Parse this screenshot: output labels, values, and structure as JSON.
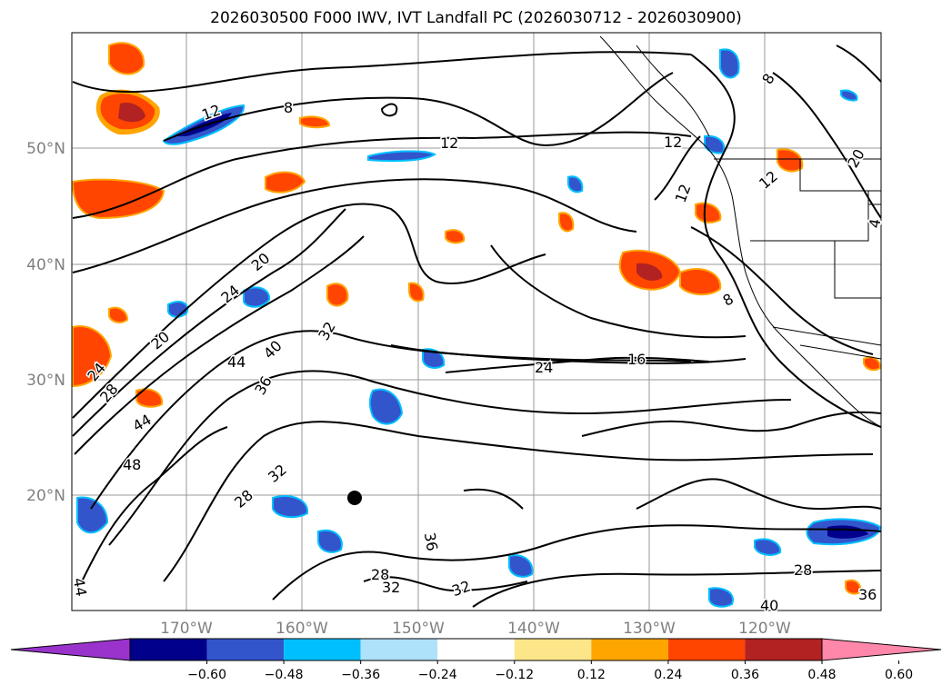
{
  "title": "2026030500 F000 IWV, IVT Landfall PC (2026030712 - 2026030900)",
  "lat_labels": [
    "50°N",
    "40°N",
    "30°N",
    "20°N"
  ],
  "lon_labels": [
    "170°W",
    "160°W",
    "150°W",
    "140°W",
    "130°W",
    "120°W"
  ],
  "colorbar": {
    "colors": [
      "#9933cc",
      "#00008b",
      "#3355cc",
      "#00bfff",
      "#aee1fa",
      "#ffffff",
      "#fde68a",
      "#ffa500",
      "#ff4500",
      "#b22222",
      "#ff88aa"
    ],
    "tick_labels": [
      "−0.60",
      "−0.48",
      "−0.36",
      "−0.24",
      "−0.12",
      "0.12",
      "0.24",
      "0.36",
      "0.48",
      "0.60"
    ]
  },
  "contour_labels": [
    "12",
    "8",
    "12",
    "20",
    "24",
    "20",
    "24",
    "28",
    "32",
    "36",
    "40",
    "44",
    "44",
    "48",
    "36",
    "32",
    "28",
    "24",
    "16",
    "12",
    "8",
    "28",
    "32",
    "32",
    "28",
    "36",
    "40",
    "44",
    "8",
    "12",
    "4",
    "12",
    "20"
  ]
}
